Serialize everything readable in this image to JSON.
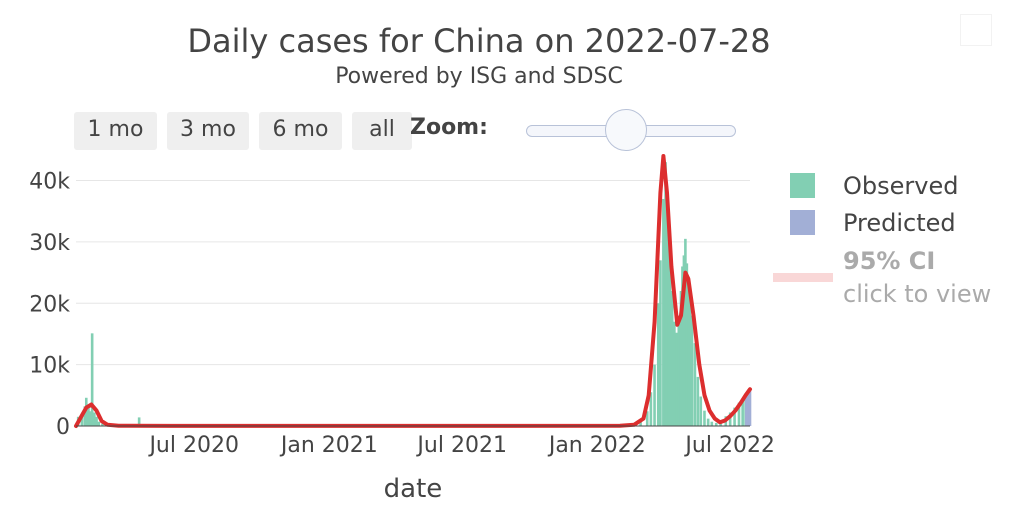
{
  "chart_data": {
    "type": "bar",
    "title": "Daily cases for China on 2022-07-28",
    "subtitle": "Powered by ISG and SDSC",
    "xlabel": "date",
    "ylabel": "",
    "x_range": [
      "2020-01-22",
      "2022-07-28"
    ],
    "ylim": [
      0,
      44000
    ],
    "y_ticks": [
      0,
      10000,
      20000,
      30000,
      40000
    ],
    "y_tick_labels": [
      "0",
      "10k",
      "20k",
      "30k",
      "40k"
    ],
    "x_ticks": [
      "2020-07-01",
      "2021-01-01",
      "2021-07-01",
      "2022-01-01",
      "2022-07-01"
    ],
    "x_tick_labels": [
      "Jul 2020",
      "Jan 2021",
      "Jul 2021",
      "Jan 2022",
      "Jul 2022"
    ],
    "grid": true,
    "legend_position": "right",
    "series": [
      {
        "name": "Observed",
        "color": "#82cfb3",
        "points": [
          [
            "2020-01-25",
            1500
          ],
          [
            "2020-01-30",
            2000
          ],
          [
            "2020-02-03",
            3200
          ],
          [
            "2020-02-05",
            4600
          ],
          [
            "2020-02-08",
            3500
          ],
          [
            "2020-02-11",
            2400
          ],
          [
            "2020-02-13",
            15100
          ],
          [
            "2020-02-16",
            2200
          ],
          [
            "2020-02-19",
            1500
          ],
          [
            "2020-02-22",
            700
          ],
          [
            "2020-02-27",
            400
          ],
          [
            "2020-03-05",
            200
          ],
          [
            "2020-04-17",
            1400
          ],
          [
            "2020-05-01",
            300
          ],
          [
            "2022-02-20",
            300
          ],
          [
            "2022-03-01",
            700
          ],
          [
            "2022-03-10",
            2400
          ],
          [
            "2022-03-15",
            5500
          ],
          [
            "2022-03-20",
            10000
          ],
          [
            "2022-03-25",
            20000
          ],
          [
            "2022-03-28",
            27000
          ],
          [
            "2022-04-01",
            37000
          ],
          [
            "2022-04-04",
            43000
          ],
          [
            "2022-04-06",
            39000
          ],
          [
            "2022-04-08",
            32000
          ],
          [
            "2022-04-10",
            27000
          ],
          [
            "2022-04-13",
            22000
          ],
          [
            "2022-04-16",
            17000
          ],
          [
            "2022-04-19",
            15200
          ],
          [
            "2022-04-22",
            18000
          ],
          [
            "2022-04-25",
            22000
          ],
          [
            "2022-04-27",
            26000
          ],
          [
            "2022-04-29",
            27800
          ],
          [
            "2022-05-01",
            30500
          ],
          [
            "2022-05-03",
            26500
          ],
          [
            "2022-05-05",
            23500
          ],
          [
            "2022-05-07",
            22000
          ],
          [
            "2022-05-10",
            18000
          ],
          [
            "2022-05-14",
            13500
          ],
          [
            "2022-05-18",
            8000
          ],
          [
            "2022-05-22",
            4800
          ],
          [
            "2022-05-27",
            2500
          ],
          [
            "2022-06-01",
            1200
          ],
          [
            "2022-06-06",
            700
          ],
          [
            "2022-06-12",
            500
          ],
          [
            "2022-06-18",
            900
          ],
          [
            "2022-06-25",
            1600
          ],
          [
            "2022-07-01",
            2200
          ],
          [
            "2022-07-07",
            3000
          ],
          [
            "2022-07-13",
            3800
          ],
          [
            "2022-07-18",
            4400
          ],
          [
            "2022-07-22",
            5000
          ]
        ]
      },
      {
        "name": "Predicted",
        "color": "#a2afd6",
        "points": [
          [
            "2022-07-23",
            5200
          ],
          [
            "2022-07-25",
            5500
          ],
          [
            "2022-07-27",
            5800
          ],
          [
            "2022-07-28",
            6000
          ]
        ]
      }
    ],
    "trend": {
      "color": "#dc2e2e",
      "points": [
        [
          "2020-01-22",
          0
        ],
        [
          "2020-01-29",
          1500
        ],
        [
          "2020-02-05",
          3000
        ],
        [
          "2020-02-12",
          3500
        ],
        [
          "2020-02-19",
          2500
        ],
        [
          "2020-02-26",
          800
        ],
        [
          "2020-03-05",
          200
        ],
        [
          "2020-03-20",
          50
        ],
        [
          "2020-06-01",
          20
        ],
        [
          "2021-06-01",
          20
        ],
        [
          "2022-02-01",
          30
        ],
        [
          "2022-02-20",
          200
        ],
        [
          "2022-03-05",
          1200
        ],
        [
          "2022-03-12",
          5000
        ],
        [
          "2022-03-20",
          17000
        ],
        [
          "2022-03-28",
          38000
        ],
        [
          "2022-04-01",
          45000
        ],
        [
          "2022-04-06",
          38000
        ],
        [
          "2022-04-12",
          26000
        ],
        [
          "2022-04-20",
          16500
        ],
        [
          "2022-04-25",
          18000
        ],
        [
          "2022-05-01",
          25000
        ],
        [
          "2022-05-05",
          24000
        ],
        [
          "2022-05-12",
          18000
        ],
        [
          "2022-05-20",
          10000
        ],
        [
          "2022-05-27",
          5000
        ],
        [
          "2022-06-03",
          2500
        ],
        [
          "2022-06-10",
          1200
        ],
        [
          "2022-06-17",
          600
        ],
        [
          "2022-06-24",
          900
        ],
        [
          "2022-07-01",
          1600
        ],
        [
          "2022-07-08",
          2500
        ],
        [
          "2022-07-15",
          3700
        ],
        [
          "2022-07-22",
          5000
        ],
        [
          "2022-07-28",
          6000
        ]
      ]
    },
    "ci_legend": {
      "label": "95% CI",
      "sub_label": "click to view",
      "color": "#f9d7d7"
    }
  },
  "range_buttons": [
    "1 mo",
    "3 mo",
    "6 mo",
    "all"
  ],
  "zoom_label": "Zoom:"
}
